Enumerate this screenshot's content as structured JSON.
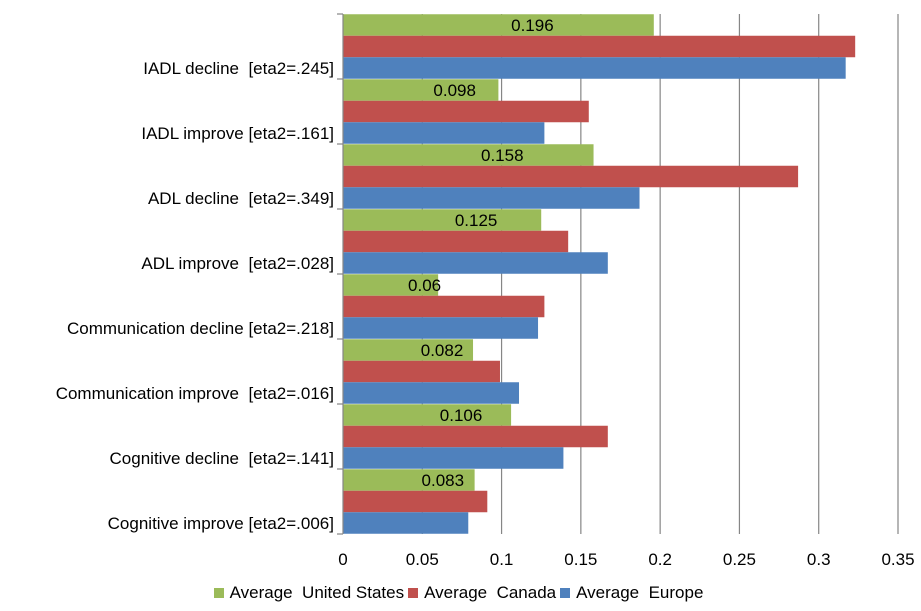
{
  "chart_data": {
    "type": "bar",
    "orientation": "horizontal",
    "title": "",
    "xlabel": "",
    "ylabel": "",
    "categories": [
      "IADL decline  [eta2=.245]",
      "IADL improve [eta2=.161]",
      "ADL decline  [eta2=.349]",
      "ADL improve  [eta2=.028]",
      "Communication decline [eta2=.218]",
      "Communication improve  [eta2=.016]",
      "Cognitive decline  [eta2=.141]",
      "Cognitive improve [eta2=.006]"
    ],
    "series": [
      {
        "name": "Average  United States",
        "color": "#9BBB59",
        "values": [
          0.196,
          0.098,
          0.158,
          0.125,
          0.06,
          0.082,
          0.106,
          0.083
        ],
        "labels": [
          "0.196",
          "0.098",
          "0.158",
          "0.125",
          "0.06",
          "0.082",
          "0.106",
          "0.083"
        ]
      },
      {
        "name": "Average  Canada",
        "color": "#C0504D",
        "values": [
          0.323,
          0.155,
          0.287,
          0.142,
          0.127,
          0.099,
          0.167,
          0.091
        ]
      },
      {
        "name": "Average  Europe",
        "color": "#4F81BD",
        "values": [
          0.317,
          0.127,
          0.187,
          0.167,
          0.123,
          0.111,
          0.139,
          0.079
        ]
      }
    ],
    "xlim": [
      0,
      0.35
    ],
    "xticks": [
      0,
      0.05,
      0.1,
      0.15,
      0.2,
      0.25,
      0.3,
      0.35
    ],
    "xtick_labels": [
      "0",
      "0.05",
      "0.1",
      "0.15",
      "0.2",
      "0.25",
      "0.3",
      "0.35"
    ],
    "grid": true,
    "legend_position": "bottom"
  }
}
